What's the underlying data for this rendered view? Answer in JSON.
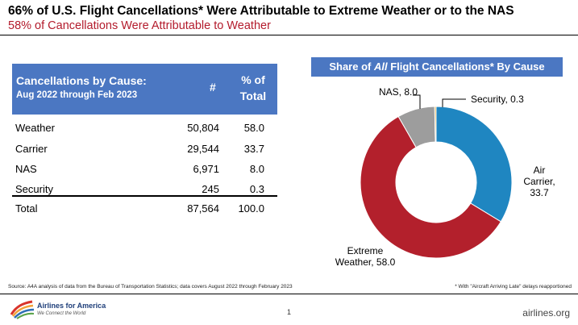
{
  "header": {
    "title": "66% of U.S. Flight Cancellations* Were Attributable to Extreme Weather or to the NAS",
    "subtitle": "58% of Cancellations Were Attributable to Weather"
  },
  "table": {
    "header_cause": "Cancellations by Cause:",
    "header_period": "Aug 2022 through Feb 2023",
    "header_count": "#",
    "header_pct_line1": "% of",
    "header_pct_line2": "Total",
    "rows": [
      {
        "label": "Weather",
        "count": "50,804",
        "pct": "58.0"
      },
      {
        "label": "Carrier",
        "count": "29,544",
        "pct": "33.7"
      },
      {
        "label": "NAS",
        "count": "6,971",
        "pct": "8.0"
      },
      {
        "label": "Security",
        "count": "245",
        "pct": "0.3"
      }
    ],
    "total": {
      "label": "Total",
      "count": "87,564",
      "pct": "100.0"
    }
  },
  "chart_header": {
    "prefix": "Share of ",
    "emphasis": "All",
    "suffix": " Flight Cancellations* By Cause"
  },
  "chart_data": {
    "type": "pie",
    "title": "Share of All Flight Cancellations* By Cause",
    "donut": true,
    "slices": [
      {
        "name": "Air Carrier",
        "value": 33.7,
        "color": "#1f86c1",
        "label_lines": [
          "Air",
          "Carrier,",
          "33.7"
        ]
      },
      {
        "name": "Extreme Weather",
        "value": 58.0,
        "color": "#b3202c",
        "label_lines": [
          "Extreme",
          "Weather,  58.0"
        ]
      },
      {
        "name": "NAS",
        "value": 8.0,
        "color": "#9d9d9d",
        "label_lines": [
          "NAS,  8.0"
        ]
      },
      {
        "name": "Security",
        "value": 0.3,
        "color": "#e0a52a",
        "label_lines": [
          "Security,  0.3"
        ]
      }
    ]
  },
  "footer": {
    "source": "Source: A4A analysis of data from the Bureau of Transportation Statistics; data covers August 2022 through February 2023",
    "footnote": "* With \"Aircraft Arriving Late\" delays reapportioned",
    "logo_name": "Airlines for America",
    "logo_tagline": "We Connect the World",
    "page_number": "1",
    "site": "airlines.org"
  },
  "colors": {
    "header_blue": "#4b77c2",
    "subtitle_red": "#b31b2c"
  }
}
